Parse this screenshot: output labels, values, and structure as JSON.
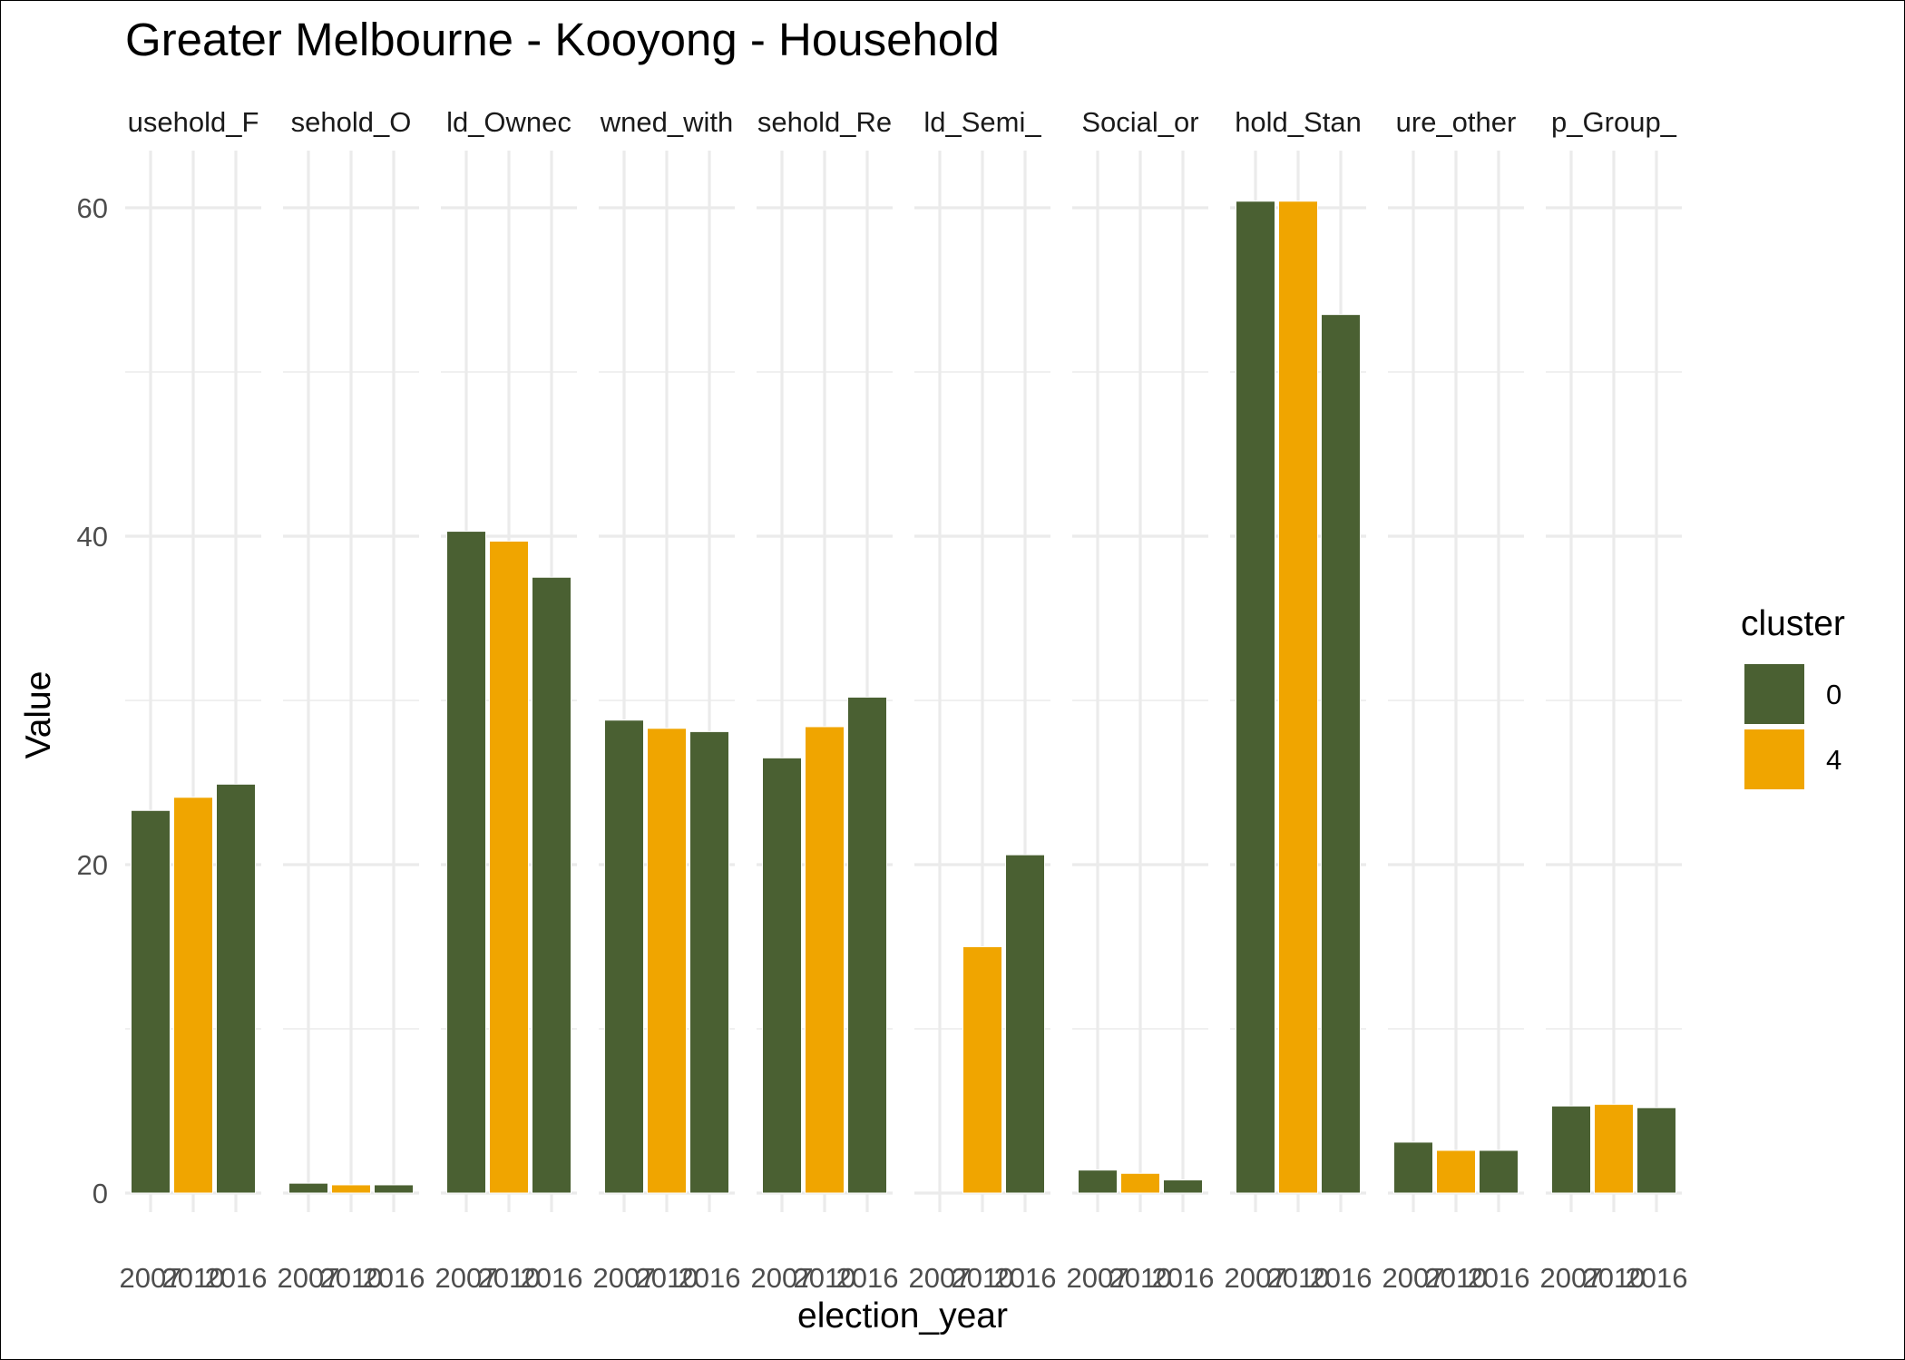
{
  "chart_data": {
    "type": "bar",
    "title": "Greater Melbourne - Kooyong - Household",
    "xlabel": "election_year",
    "ylabel": "Value",
    "ylim": [
      0,
      63
    ],
    "yticks": [
      0,
      20,
      40,
      60
    ],
    "grid": true,
    "legend": {
      "title": "cluster",
      "placement": "right",
      "entries": [
        {
          "name": "0",
          "color": "#4a6032"
        },
        {
          "name": "4",
          "color": "#f0a500"
        }
      ]
    },
    "x": [
      "2007",
      "2010",
      "2016"
    ],
    "facets": [
      {
        "label": "usehold_F",
        "values": [
          23.3,
          24.1,
          24.9
        ],
        "clusters": [
          "0",
          "4",
          "0"
        ]
      },
      {
        "label": "sehold_O",
        "values": [
          0.6,
          0.5,
          0.5
        ],
        "clusters": [
          "0",
          "4",
          "0"
        ]
      },
      {
        "label": "ld_Ownec",
        "values": [
          40.3,
          39.7,
          37.5
        ],
        "clusters": [
          "0",
          "4",
          "0"
        ]
      },
      {
        "label": "wned_with",
        "values": [
          28.8,
          28.3,
          28.1
        ],
        "clusters": [
          "0",
          "4",
          "0"
        ]
      },
      {
        "label": "sehold_Re",
        "values": [
          26.5,
          28.4,
          30.2
        ],
        "clusters": [
          "0",
          "4",
          "0"
        ]
      },
      {
        "label": "ld_Semi_",
        "values": [
          null,
          15.0,
          20.6
        ],
        "clusters": [
          "0",
          "4",
          "0"
        ]
      },
      {
        "label": "Social_or",
        "values": [
          1.4,
          1.2,
          0.8
        ],
        "clusters": [
          "0",
          "4",
          "0"
        ]
      },
      {
        "label": "hold_Stan",
        "values": [
          60.4,
          60.4,
          53.5
        ],
        "clusters": [
          "0",
          "4",
          "0"
        ]
      },
      {
        "label": "ure_other",
        "values": [
          3.1,
          2.6,
          2.6
        ],
        "clusters": [
          "0",
          "4",
          "0"
        ]
      },
      {
        "label": "p_Group_",
        "values": [
          5.3,
          5.4,
          5.2
        ],
        "clusters": [
          "0",
          "4",
          "0"
        ]
      }
    ]
  }
}
